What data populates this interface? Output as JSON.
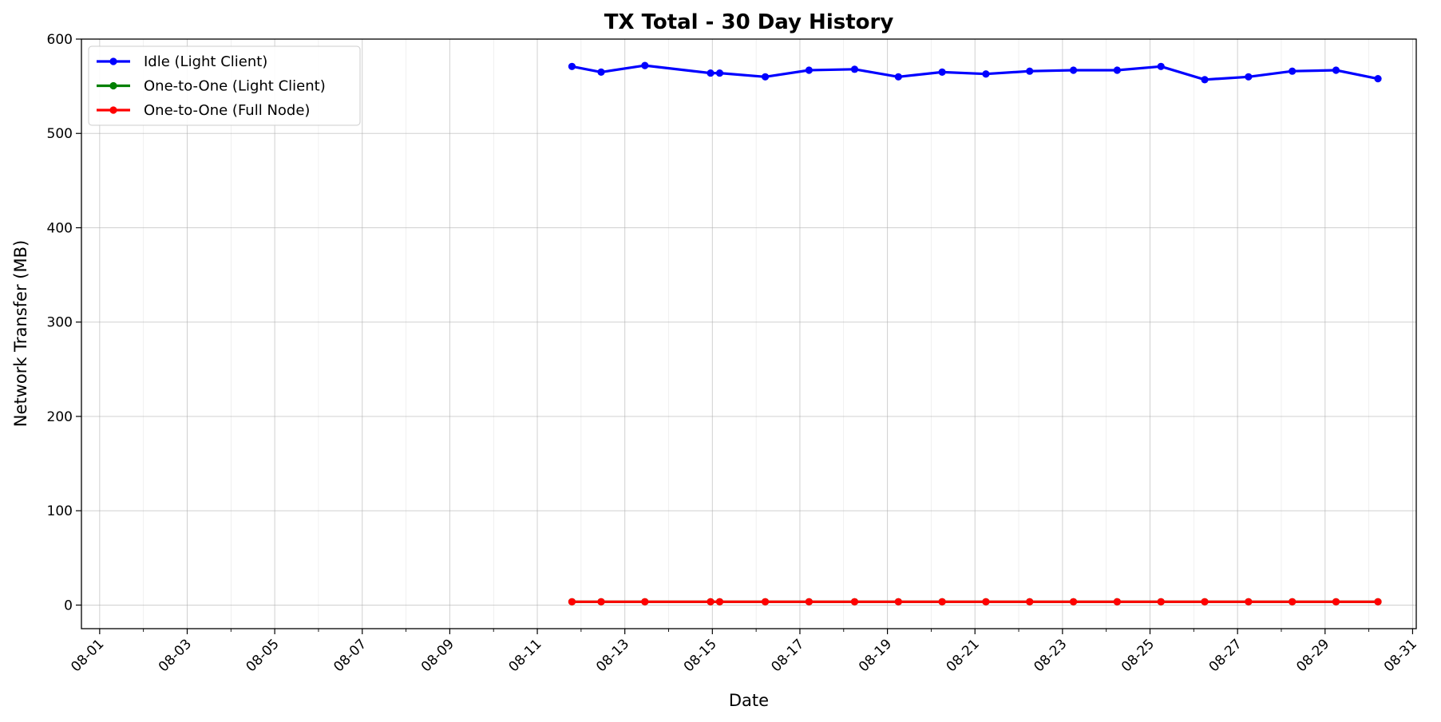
{
  "chart_data": {
    "type": "line",
    "title": "TX Total - 30 Day History",
    "xlabel": "Date",
    "ylabel": "Network Transfer (MB)",
    "xlim": [
      "2024-07-31T14:00",
      "2024-08-31T02:00"
    ],
    "ylim": [
      -25,
      600
    ],
    "x_ticks": [
      "08-01",
      "08-03",
      "08-05",
      "08-07",
      "08-09",
      "08-11",
      "08-13",
      "08-15",
      "08-17",
      "08-19",
      "08-21",
      "08-23",
      "08-25",
      "08-27",
      "08-29",
      "08-31"
    ],
    "y_ticks": [
      0,
      100,
      200,
      300,
      400,
      500,
      600
    ],
    "grid": true,
    "legend_position": "top-left",
    "x": [
      "2024-08-11T19:00",
      "2024-08-12T11:00",
      "2024-08-13T11:00",
      "2024-08-14T23:00",
      "2024-08-15T04:00",
      "2024-08-16T05:00",
      "2024-08-17T05:00",
      "2024-08-18T06:00",
      "2024-08-19T06:00",
      "2024-08-20T06:00",
      "2024-08-21T06:00",
      "2024-08-22T06:00",
      "2024-08-23T06:00",
      "2024-08-24T06:00",
      "2024-08-25T06:00",
      "2024-08-26T06:00",
      "2024-08-27T06:00",
      "2024-08-28T06:00",
      "2024-08-29T06:00",
      "2024-08-30T05:00"
    ],
    "series": [
      {
        "name": "Idle (Light Client)",
        "color": "#0000ff",
        "values": [
          571,
          565,
          572,
          564,
          564,
          560,
          567,
          568,
          560,
          565,
          563,
          566,
          567,
          567,
          571,
          557,
          560,
          566,
          567,
          558
        ]
      },
      {
        "name": "One-to-One (Light Client)",
        "color": "#008000",
        "values": [
          3.5,
          3.5,
          3.5,
          3.5,
          3.5,
          3.5,
          3.5,
          3.5,
          3.5,
          3.5,
          3.5,
          3.5,
          3.5,
          3.5,
          3.5,
          3.5,
          3.5,
          3.5,
          3.5,
          3.5
        ]
      },
      {
        "name": "One-to-One (Full Node)",
        "color": "#ff0000",
        "values": [
          3.5,
          3.5,
          3.5,
          3.5,
          3.5,
          3.5,
          3.5,
          3.5,
          3.5,
          3.5,
          3.5,
          3.5,
          3.5,
          3.5,
          3.5,
          3.5,
          3.5,
          3.5,
          3.5,
          3.5
        ]
      }
    ]
  }
}
